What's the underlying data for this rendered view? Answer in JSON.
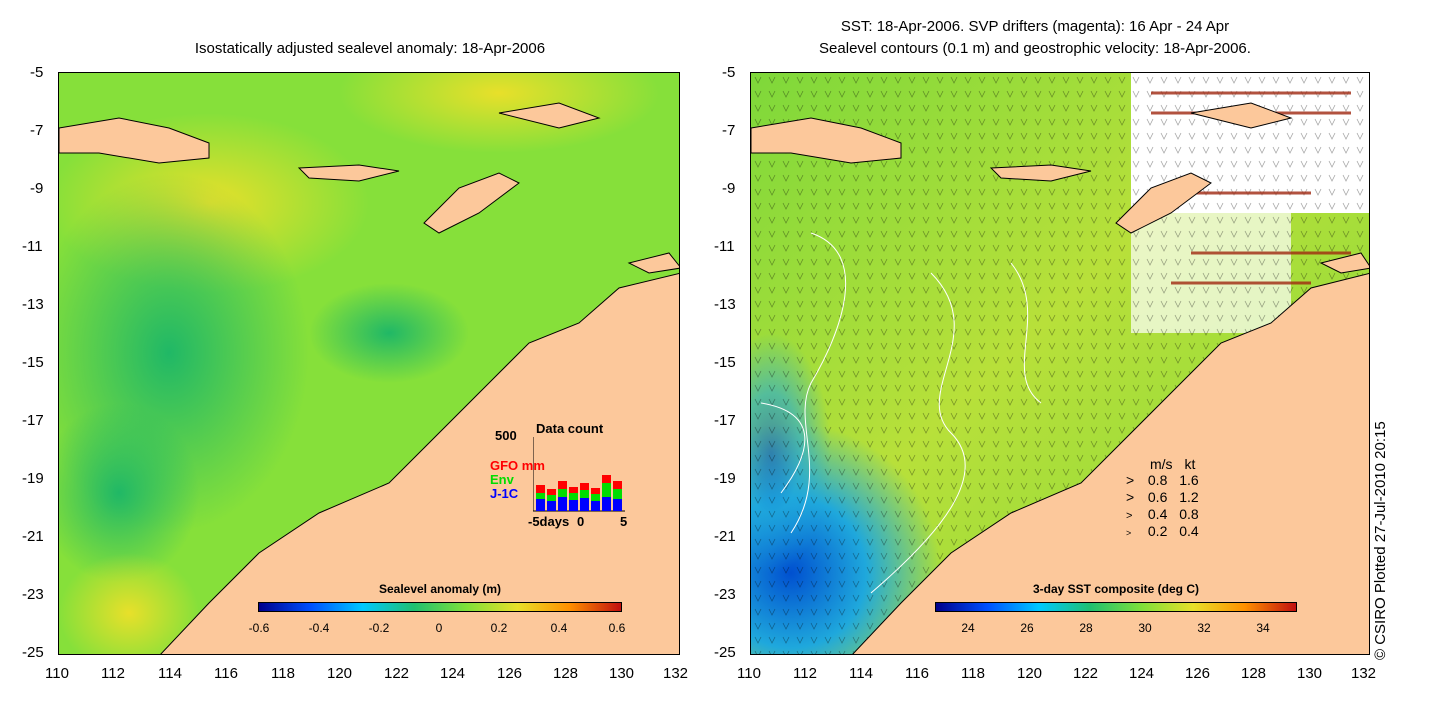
{
  "left_panel": {
    "title": "Isostatically adjusted sealevel anomaly: 18-Apr-2006",
    "colorbar_label": "Sealevel anomaly (m)",
    "colorbar_ticks": [
      "-0.6",
      "-0.4",
      "-0.2",
      "0",
      "0.2",
      "0.4",
      "0.6"
    ],
    "inset": {
      "title": "Data count",
      "ymax": "500",
      "series": [
        {
          "name": "GFO mm",
          "color": "#ff0000"
        },
        {
          "name": "Env",
          "color": "#00dd00"
        },
        {
          "name": "J-1C",
          "color": "#0000ff"
        }
      ],
      "x_labels": [
        "-5days",
        "0",
        "5"
      ]
    }
  },
  "right_panel": {
    "title_line1": "SST: 18-Apr-2006. SVP drifters (magenta): 16 Apr - 24 Apr",
    "title_line2": "Sealevel contours (0.1 m) and geostrophic velocity: 18-Apr-2006.",
    "colorbar_label": "3-day SST composite (deg C)",
    "colorbar_ticks": [
      "24",
      "26",
      "28",
      "30",
      "32",
      "34"
    ],
    "velocity_legend": {
      "header_ms": "m/s",
      "header_kt": "kt",
      "rows": [
        {
          "ms": "0.8",
          "kt": "1.6"
        },
        {
          "ms": "0.6",
          "kt": "1.2"
        },
        {
          "ms": "0.4",
          "kt": "0.8"
        },
        {
          "ms": "0.2",
          "kt": "0.4"
        }
      ]
    }
  },
  "axes": {
    "lat_ticks": [
      "-5",
      "-7",
      "-9",
      "-11",
      "-13",
      "-15",
      "-17",
      "-19",
      "-21",
      "-23",
      "-25"
    ],
    "lon_ticks": [
      "110",
      "112",
      "114",
      "116",
      "118",
      "120",
      "122",
      "124",
      "126",
      "128",
      "130",
      "132"
    ]
  },
  "copyright": "© CSIRO Plotted 27-Jul-2010 20:15",
  "colors": {
    "land": "#fcc89b",
    "sea_neutral": "#7fdd3a",
    "sst_warm": "#c8e43a",
    "sst_cool": "#2aa9d8"
  }
}
